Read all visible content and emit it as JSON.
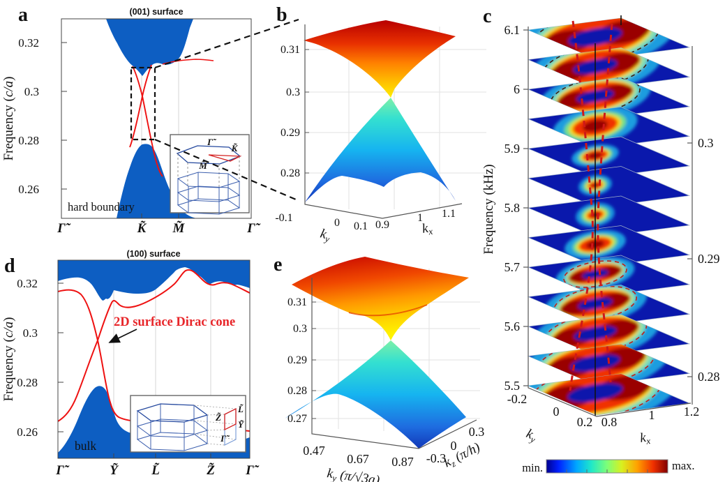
{
  "panel_a": {
    "label": "a",
    "title": "(001) surface",
    "ylabel": {
      "prefix": "Frequency (",
      "italic": "c/a",
      "suffix": ")"
    },
    "yticks": [
      "0.32",
      "0.3",
      "0.28",
      "0.26"
    ],
    "xticks": [
      "Γ̃",
      "K̃",
      "M̃",
      "Γ̃"
    ],
    "note": "hard boundary",
    "inset": {
      "gamma": "Γ̃",
      "k": "K̃",
      "m": "M̃"
    }
  },
  "panel_b": {
    "label": "b",
    "zticks": [
      "0.31",
      "0.3",
      "0.29",
      "0.28"
    ],
    "ky": {
      "base": "k",
      "sub": "y",
      "ticks": [
        "-0.1",
        "0",
        "0.1"
      ]
    },
    "kx": {
      "base": "k",
      "sub": "x",
      "ticks": [
        "0.9",
        "1",
        "1.1"
      ]
    }
  },
  "panel_c": {
    "label": "c",
    "ylabel": "Frequency (kHz)",
    "freq_ticks": [
      "5.5",
      "5.6",
      "5.7",
      "5.8",
      "5.9",
      "6",
      "6.1"
    ],
    "right_ticks": [
      "0.28",
      "0.29",
      "0.3"
    ],
    "ky": {
      "base": "k",
      "sub": "y",
      "ticks": [
        "-0.2",
        "0",
        "0.2"
      ]
    },
    "kx": {
      "base": "k",
      "sub": "x",
      "ticks": [
        "0.8",
        "1",
        "1.2"
      ]
    },
    "colorbar": {
      "min": "min.",
      "max": "max."
    },
    "planes": [
      {
        "freq": "5.5",
        "kind": "ring",
        "size": 80
      },
      {
        "freq": "5.55",
        "kind": "ring",
        "size": 72
      },
      {
        "freq": "5.6",
        "kind": "ring",
        "size": 62
      },
      {
        "freq": "5.65",
        "kind": "ring",
        "size": 50
      },
      {
        "freq": "5.7",
        "kind": "ring",
        "size": 38
      },
      {
        "freq": "5.75",
        "kind": "blob",
        "size": 26
      },
      {
        "freq": "5.8",
        "kind": "dot",
        "size": 14
      },
      {
        "freq": "5.85",
        "kind": "dot",
        "size": 12
      },
      {
        "freq": "5.9",
        "kind": "blob",
        "size": 20
      },
      {
        "freq": "5.95",
        "kind": "blob",
        "size": 36
      },
      {
        "freq": "6",
        "kind": "ring",
        "size": 54
      },
      {
        "freq": "6.05",
        "kind": "ring",
        "size": 64
      },
      {
        "freq": "6.1",
        "kind": "ring",
        "size": 78
      }
    ]
  },
  "panel_d": {
    "label": "d",
    "title": "(100) surface",
    "ylabel": {
      "prefix": "Frequency (",
      "italic": "c/a",
      "suffix": ")"
    },
    "yticks": [
      "0.32",
      "0.3",
      "0.28",
      "0.26"
    ],
    "xticks": [
      "Γ̃",
      "Ỹ",
      "L̃",
      "Z̃",
      "Γ̃"
    ],
    "annotation": "2D surface Dirac cone",
    "note": "bulk",
    "inset": {
      "z": "Z̃",
      "l": "L̃",
      "y": "Ỹ",
      "gamma": "Γ̃"
    }
  },
  "panel_e": {
    "label": "e",
    "zticks": [
      "0.31",
      "0.3",
      "0.29",
      "0.28",
      "0.27"
    ],
    "ky": {
      "base": "k",
      "sub": "y",
      "rest": " (π/√3a)",
      "ticks": [
        "0.47",
        "0.67",
        "0.87"
      ]
    },
    "kz": {
      "base": "k",
      "sub": "z",
      "rest": " (π/h)",
      "ticks": [
        "-0.3",
        "0",
        "0.3"
      ]
    }
  },
  "chart_data": [
    {
      "panel": "a",
      "type": "area",
      "title": "(001) surface",
      "description": "Surface band structure with hard boundary: blue projected bulk bands above and below a gap, red surface states crossing linearly at the K̃ point (Dirac point)",
      "ylabel": "Frequency (c/a)",
      "ylim": [
        0.245,
        0.33
      ],
      "yticks": [
        0.26,
        0.28,
        0.3,
        0.32
      ],
      "x_path": [
        "Γ̃",
        "K̃",
        "M̃",
        "Γ̃"
      ],
      "dirac_point": {
        "k": "K̃",
        "frequency": 0.299
      },
      "boundary_condition": "hard boundary",
      "zoom_box_frequency_range": [
        0.281,
        0.31
      ]
    },
    {
      "panel": "b",
      "type": "surface3d",
      "description": "3D Dirac cone dispersion around K̃ of the (001) surface; upper cone red-orange, lower cone cyan-blue, touching at the Dirac point",
      "zticks": [
        0.28,
        0.29,
        0.3,
        0.31
      ],
      "kx_range": [
        0.9,
        1.1
      ],
      "ky_range": [
        -0.1,
        0.1
      ],
      "dirac_point": {
        "kx": 1,
        "ky": 0,
        "frequency": 0.299
      },
      "colormap": "jet"
    },
    {
      "panel": "c",
      "type": "heatmap-stack",
      "description": "Measured isofrequency field maps stacked versus frequency; bright rings shrink to a point near 5.8 kHz (Dirac point) then reopen; red dashed lines trace the cone, dashed ellipses are calculated isofrequency contours",
      "ylabel": "Frequency (kHz)",
      "plane_frequencies_kHz": [
        5.5,
        5.55,
        5.6,
        5.65,
        5.7,
        5.75,
        5.8,
        5.85,
        5.9,
        5.95,
        6.0,
        6.05,
        6.1
      ],
      "freq_axis_ticks_kHz": [
        5.5,
        5.6,
        5.7,
        5.8,
        5.9,
        6.0,
        6.1
      ],
      "right_axis_ticks_c_over_a": [
        0.28,
        0.29,
        0.3
      ],
      "kx_range": [
        0.8,
        1.2
      ],
      "ky_range": [
        -0.2,
        0.2
      ],
      "colorbar": {
        "min_label": "min.",
        "max_label": "max.",
        "colormap": "jet"
      }
    },
    {
      "panel": "d",
      "type": "area",
      "title": "(100) surface",
      "description": "Surface band structure along Γ̃–Ỹ–L̃–Z̃–Γ̃: blue bulk continuum, red surface bands forming a 2D surface Dirac cone between Γ̃ and Ỹ",
      "ylabel": "Frequency (c/a)",
      "ylim": [
        0.247,
        0.329
      ],
      "yticks": [
        0.26,
        0.28,
        0.3,
        0.32
      ],
      "x_path": [
        "Γ̃",
        "Ỹ",
        "L̃",
        "Z̃",
        "Γ̃"
      ],
      "annotation": "2D surface Dirac cone",
      "dirac_point": {
        "between": "Γ̃ and Ỹ",
        "frequency": 0.2975
      },
      "region_label": "bulk"
    },
    {
      "panel": "e",
      "type": "surface3d",
      "description": "3D dispersion of the (100)-surface Dirac cone; saddle-shaped upper sheet (red) and lower sheet (blue) touching at one point",
      "zticks": [
        0.27,
        0.28,
        0.29,
        0.3,
        0.31
      ],
      "ky_range_pi_over_sqrt3a": [
        0.47,
        0.87
      ],
      "kz_range_pi_over_h": [
        -0.3,
        0.3
      ],
      "dirac_point_frequency": 0.2975,
      "colormap": "jet"
    }
  ]
}
